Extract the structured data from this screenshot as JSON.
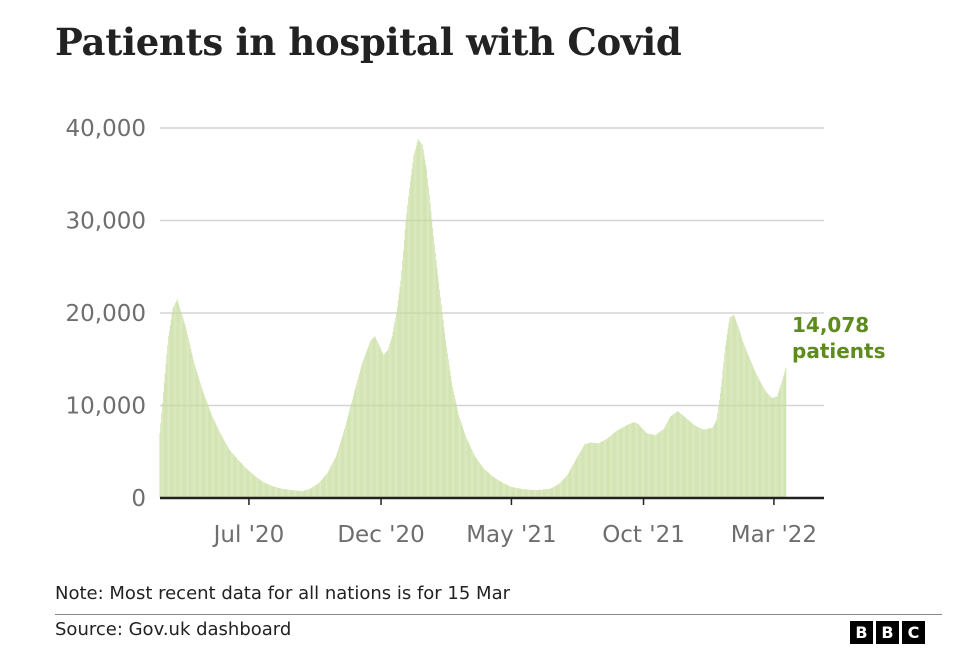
{
  "title": "Patients in hospital with Covid",
  "note": "Note: Most recent data for all nations is for 15 Mar",
  "source": "Source: Gov.uk dashboard",
  "logo": [
    "B",
    "B",
    "C"
  ],
  "colors": {
    "bar": "#c6dc9c",
    "annotation": "#5d8b1e",
    "grid": "#d4d4d4",
    "axis": "#222222"
  },
  "chart_data": {
    "type": "bar",
    "title": "Patients in hospital with Covid",
    "xlabel": "",
    "ylabel": "",
    "ylim": [
      0,
      40000
    ],
    "yticks": [
      0,
      10000,
      20000,
      30000,
      40000
    ],
    "ytick_labels": [
      "0",
      "10,000",
      "20,000",
      "30,000",
      "40,000"
    ],
    "x_range": [
      "2020-03-20",
      "2022-03-15"
    ],
    "xticks": [
      {
        "date": "2020-07-01",
        "label": "Jul '20"
      },
      {
        "date": "2020-12-01",
        "label": "Dec '20"
      },
      {
        "date": "2021-05-01",
        "label": "May '21"
      },
      {
        "date": "2021-10-01",
        "label": "Oct '21"
      },
      {
        "date": "2022-03-01",
        "label": "Mar '22"
      }
    ],
    "series": [
      {
        "name": "Patients in hospital",
        "points": [
          [
            "2020-03-20",
            7000
          ],
          [
            "2020-03-25",
            12500
          ],
          [
            "2020-03-30",
            17500
          ],
          [
            "2020-04-04",
            20500
          ],
          [
            "2020-04-09",
            21500
          ],
          [
            "2020-04-14",
            20000
          ],
          [
            "2020-04-19",
            18500
          ],
          [
            "2020-04-24",
            16500
          ],
          [
            "2020-04-29",
            14500
          ],
          [
            "2020-05-09",
            11500
          ],
          [
            "2020-05-19",
            9000
          ],
          [
            "2020-05-29",
            7000
          ],
          [
            "2020-06-08",
            5300
          ],
          [
            "2020-06-18",
            4200
          ],
          [
            "2020-06-28",
            3200
          ],
          [
            "2020-07-08",
            2400
          ],
          [
            "2020-07-18",
            1700
          ],
          [
            "2020-07-28",
            1300
          ],
          [
            "2020-08-08",
            1000
          ],
          [
            "2020-08-20",
            850
          ],
          [
            "2020-09-01",
            750
          ],
          [
            "2020-09-10",
            1000
          ],
          [
            "2020-09-20",
            1600
          ],
          [
            "2020-09-30",
            2700
          ],
          [
            "2020-10-10",
            4500
          ],
          [
            "2020-10-20",
            7500
          ],
          [
            "2020-10-30",
            11000
          ],
          [
            "2020-11-09",
            14500
          ],
          [
            "2020-11-19",
            17000
          ],
          [
            "2020-11-24",
            17500
          ],
          [
            "2020-11-29",
            16500
          ],
          [
            "2020-12-04",
            15500
          ],
          [
            "2020-12-09",
            16000
          ],
          [
            "2020-12-14",
            17500
          ],
          [
            "2020-12-19",
            20000
          ],
          [
            "2020-12-24",
            23500
          ],
          [
            "2020-12-29",
            29000
          ],
          [
            "2021-01-03",
            33500
          ],
          [
            "2021-01-08",
            37000
          ],
          [
            "2021-01-13",
            38800
          ],
          [
            "2021-01-18",
            38200
          ],
          [
            "2021-01-23",
            35500
          ],
          [
            "2021-01-28",
            31000
          ],
          [
            "2021-02-02",
            26500
          ],
          [
            "2021-02-07",
            22500
          ],
          [
            "2021-02-12",
            18500
          ],
          [
            "2021-02-17",
            15000
          ],
          [
            "2021-02-22",
            12000
          ],
          [
            "2021-03-01",
            9000
          ],
          [
            "2021-03-10",
            6500
          ],
          [
            "2021-03-20",
            4500
          ],
          [
            "2021-03-30",
            3200
          ],
          [
            "2021-04-10",
            2300
          ],
          [
            "2021-04-20",
            1700
          ],
          [
            "2021-05-01",
            1200
          ],
          [
            "2021-05-15",
            950
          ],
          [
            "2021-06-01",
            850
          ],
          [
            "2021-06-15",
            1000
          ],
          [
            "2021-06-25",
            1500
          ],
          [
            "2021-07-05",
            2500
          ],
          [
            "2021-07-15",
            4200
          ],
          [
            "2021-07-25",
            5800
          ],
          [
            "2021-08-01",
            6000
          ],
          [
            "2021-08-10",
            5900
          ],
          [
            "2021-08-20",
            6400
          ],
          [
            "2021-08-30",
            7200
          ],
          [
            "2021-09-10",
            7800
          ],
          [
            "2021-09-20",
            8200
          ],
          [
            "2021-09-25",
            8000
          ],
          [
            "2021-10-05",
            7000
          ],
          [
            "2021-10-15",
            6800
          ],
          [
            "2021-10-25",
            7500
          ],
          [
            "2021-11-01",
            8800
          ],
          [
            "2021-11-10",
            9400
          ],
          [
            "2021-11-20",
            8600
          ],
          [
            "2021-11-30",
            7800
          ],
          [
            "2021-12-10",
            7400
          ],
          [
            "2021-12-20",
            7600
          ],
          [
            "2021-12-25",
            8500
          ],
          [
            "2021-12-30",
            12000
          ],
          [
            "2022-01-04",
            16500
          ],
          [
            "2022-01-09",
            19500
          ],
          [
            "2022-01-14",
            19800
          ],
          [
            "2022-01-19",
            18500
          ],
          [
            "2022-01-24",
            17000
          ],
          [
            "2022-01-29",
            15800
          ],
          [
            "2022-02-05",
            14200
          ],
          [
            "2022-02-12",
            12800
          ],
          [
            "2022-02-20",
            11500
          ],
          [
            "2022-02-27",
            10800
          ],
          [
            "2022-03-05",
            11000
          ],
          [
            "2022-03-10",
            12500
          ],
          [
            "2022-03-15",
            14078
          ]
        ]
      }
    ],
    "annotation": {
      "value": "14,078",
      "unit": "patients"
    }
  }
}
